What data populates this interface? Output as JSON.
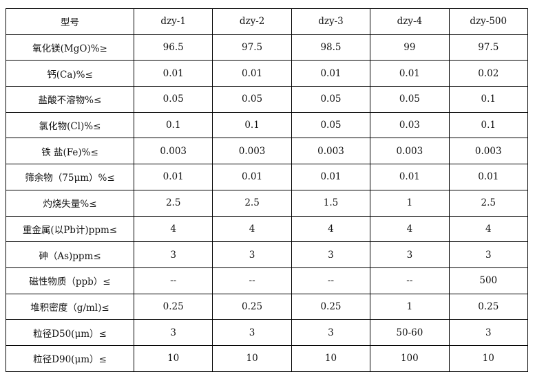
{
  "table": {
    "header": [
      "型号",
      "dzy-1",
      "dzy-2",
      "dzy-3",
      "dzy-4",
      "dzy-500"
    ],
    "rows": [
      [
        "氧化镁(MgO)%≥",
        "96.5",
        "97.5",
        "98.5",
        "99",
        "97.5"
      ],
      [
        "钙(Ca)%≤",
        "0.01",
        "0.01",
        "0.01",
        "0.01",
        "0.02"
      ],
      [
        "盐酸不溶物%≤",
        "0.05",
        "0.05",
        "0.05",
        "0.05",
        "0.1"
      ],
      [
        "氯化物(Cl)%≤",
        "0.1",
        "0.1",
        "0.05",
        "0.03",
        "0.1"
      ],
      [
        "铁 盐(Fe)%≤",
        "0.003",
        "0.003",
        "0.003",
        "0.003",
        "0.003"
      ],
      [
        "筛余物（75μm）%≤",
        "0.01",
        "0.01",
        "0.01",
        "0.01",
        "0.01"
      ],
      [
        "灼烧失量%≤",
        "2.5",
        "2.5",
        "1.5",
        "1",
        "2.5"
      ],
      [
        "重金属(以Pb计)ppm≤",
        "4",
        "4",
        "4",
        "4",
        "4"
      ],
      [
        "砷（As)ppm≤",
        "3",
        "3",
        "3",
        "3",
        "3"
      ],
      [
        "磁性物质（ppb）≤",
        "--",
        "--",
        "--",
        "--",
        "500"
      ],
      [
        "堆积密度（g/ml)≤",
        "0.25",
        "0.25",
        "0.25",
        "1",
        "0.25"
      ],
      [
        "粒径D50(μm）≤",
        "3",
        "3",
        "3",
        "50-60",
        "3"
      ],
      [
        "粒径D90(μm）≤",
        "10",
        "10",
        "10",
        "100",
        "10"
      ]
    ]
  }
}
